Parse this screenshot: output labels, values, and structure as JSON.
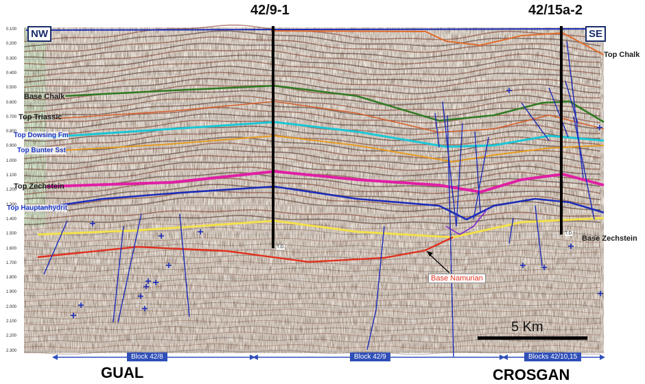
{
  "wells": [
    {
      "name": "42/9-1"
    },
    {
      "name": "42/15a-2"
    }
  ],
  "directions": {
    "left": "NW",
    "right": "SE"
  },
  "horizons_left": {
    "base_chalk": "Base Chalk",
    "top_triassic": "Top Triassic",
    "top_dowsing": "Top Dowsing Fm",
    "top_bunter": "Top Bunter Sst",
    "top_zechstein": "Top Zechstein",
    "top_hauptanhydrit": "Top Hauptanhydrit"
  },
  "horizons_right": {
    "top_chalk": "Top Chalk",
    "base_zechstein": "Base Zechstein"
  },
  "annotation": {
    "base_namurian": "Base Namurian"
  },
  "td_label": "T.D.",
  "blocks": [
    "Block 42/8",
    "Block 42/9",
    "Blocks 42/10,15"
  ],
  "fields": [
    "GUAL",
    "CROSGAN"
  ],
  "scale_bar": {
    "label": "5 Km"
  },
  "time_axis": [
    "0.100",
    "0.200",
    "0.300",
    "0.400",
    "0.500",
    "0.600",
    "0.700",
    "0.800",
    "0.900",
    "1.000",
    "1.100",
    "1.200",
    "1.300",
    "1.400",
    "1.500",
    "1.600",
    "1.700",
    "1.800",
    "1.900",
    "2.000",
    "2.100",
    "2.200",
    "2.300"
  ]
}
